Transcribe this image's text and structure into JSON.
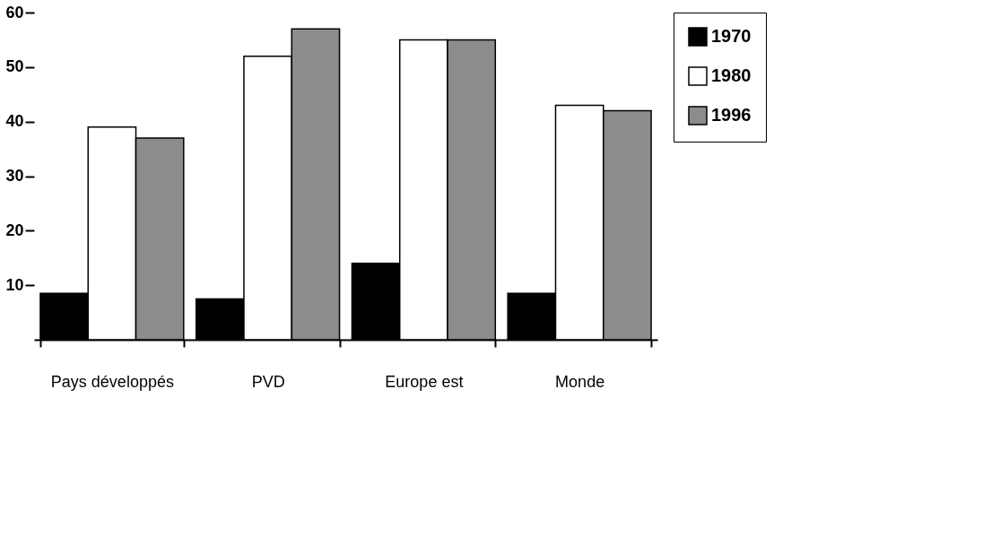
{
  "chart_data": {
    "type": "bar",
    "categories": [
      "Pays développés",
      "PVD",
      "Europe est",
      "Monde"
    ],
    "series": [
      {
        "name": "1970",
        "color": "#000000",
        "values": [
          8.5,
          7.5,
          14,
          8.5
        ]
      },
      {
        "name": "1980",
        "color": "#ffffff",
        "values": [
          39,
          52,
          55,
          43
        ]
      },
      {
        "name": "1996",
        "color": "#8c8c8c",
        "values": [
          37,
          57,
          55,
          42
        ]
      }
    ],
    "ylim": [
      0,
      60
    ],
    "yticks": [
      10,
      20,
      30,
      40,
      50,
      60
    ],
    "grid": false,
    "legend": "right"
  }
}
